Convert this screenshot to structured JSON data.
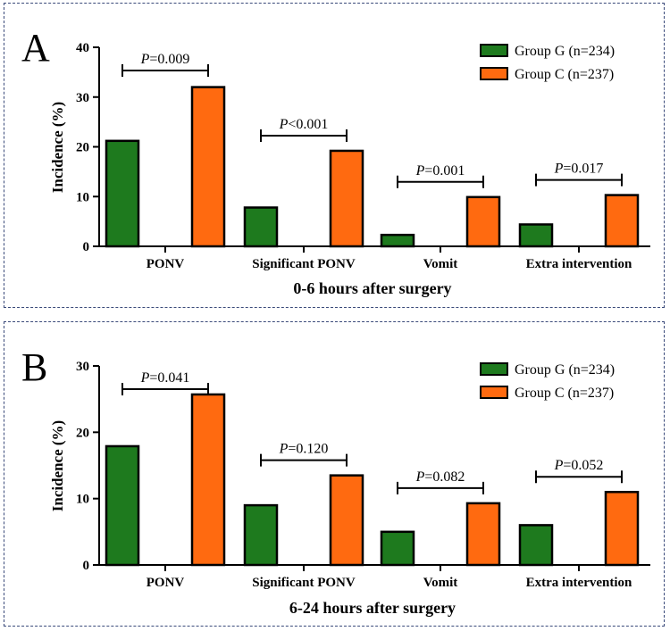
{
  "chart_data": [
    {
      "type": "bar",
      "panel": "A",
      "title": "",
      "xlabel": "0-6 hours after surgery",
      "ylabel": "Incidence (%)",
      "ylim": [
        0,
        40
      ],
      "yticks": [
        0,
        10,
        20,
        30,
        40
      ],
      "categories": [
        "PONV",
        "Significant PONV",
        "Vomit",
        "Extra intervention"
      ],
      "series": [
        {
          "name": "Group G (n=234)",
          "color": "#1e7a1e",
          "values": [
            21.2,
            7.8,
            2.3,
            4.4
          ]
        },
        {
          "name": "Group C (n=237)",
          "color": "#ff6a10",
          "values": [
            32.0,
            19.2,
            9.9,
            10.3
          ]
        }
      ],
      "pvalues": [
        {
          "label": "P",
          "value": "=0.009"
        },
        {
          "label": "P",
          "value": "<0.001"
        },
        {
          "label": "P",
          "value": "=0.001"
        },
        {
          "label": "P",
          "value": "=0.017"
        }
      ],
      "legend": "top-right"
    },
    {
      "type": "bar",
      "panel": "B",
      "title": "",
      "xlabel": "6-24 hours after surgery",
      "ylabel": "Incidence (%)",
      "ylim": [
        0,
        30
      ],
      "yticks": [
        0,
        10,
        20,
        30
      ],
      "categories": [
        "PONV",
        "Significant PONV",
        "Vomit",
        "Extra intervention"
      ],
      "series": [
        {
          "name": "Group G (n=234)",
          "color": "#1e7a1e",
          "values": [
            17.9,
            9.0,
            5.0,
            6.0
          ]
        },
        {
          "name": "Group C (n=237)",
          "color": "#ff6a10",
          "values": [
            25.7,
            13.5,
            9.3,
            11.0
          ]
        }
      ],
      "pvalues": [
        {
          "label": "P",
          "value": "=0.041"
        },
        {
          "label": "P",
          "value": "=0.120"
        },
        {
          "label": "P",
          "value": "=0.082"
        },
        {
          "label": "P",
          "value": "=0.052"
        }
      ],
      "legend": "top-right"
    }
  ]
}
